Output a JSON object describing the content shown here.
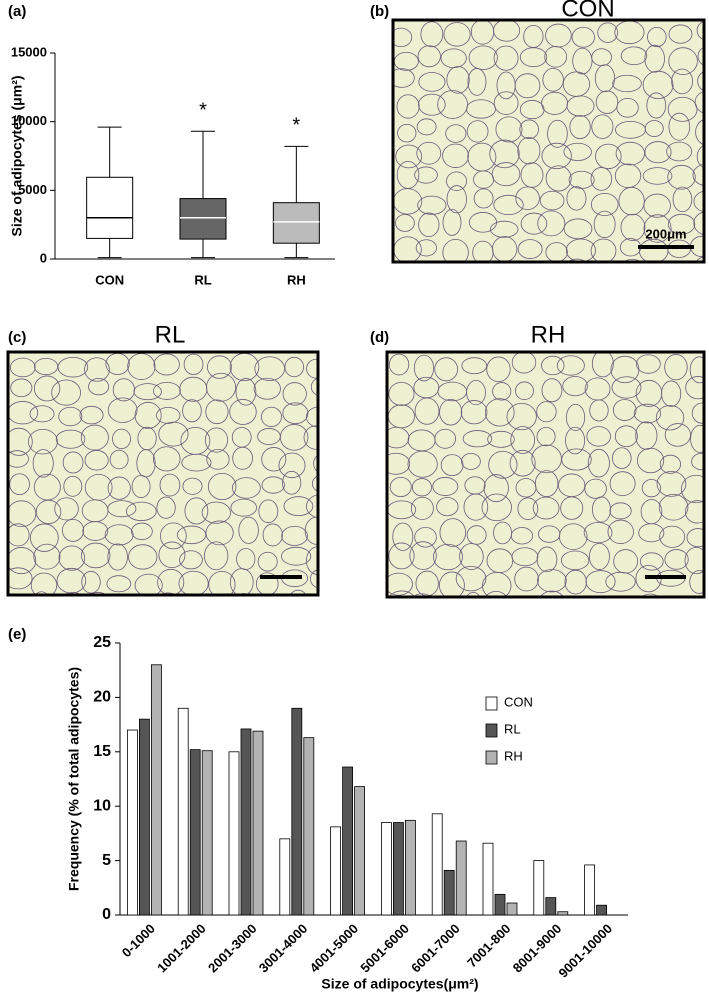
{
  "chart_data": [
    {
      "type": "box",
      "panel_label": "(a)",
      "ylabel": "Size of adipocytes (μm²)",
      "ylim": [
        0,
        15000
      ],
      "yticks": [
        0,
        5000,
        10000,
        15000
      ],
      "boxes": [
        {
          "name": "CON",
          "color": "#ffffff",
          "min": 100,
          "q1": 1500,
          "median": 3000,
          "q3": 5950,
          "max": 9600
        },
        {
          "name": "RL",
          "color": "#666666",
          "min": 100,
          "q1": 1450,
          "median": 3000,
          "q3": 4400,
          "max": 9300,
          "annotation": "*"
        },
        {
          "name": "RH",
          "color": "#bbbbbb",
          "min": 100,
          "q1": 1150,
          "median": 2700,
          "q3": 4100,
          "max": 8200,
          "annotation": "*"
        }
      ]
    },
    {
      "type": "bar",
      "panel_label": "(e)",
      "xlabel": "Size of adipocytes(μm²)",
      "ylabel": "Frequency (% of total adipocytes)",
      "categories": [
        "0-1000",
        "1001-2000",
        "2001-3000",
        "3001-4000",
        "4001-5000",
        "5001-6000",
        "6001-7000",
        "7001-800",
        "8001-9000",
        "9001-10000"
      ],
      "ylim": [
        0,
        25
      ],
      "yticks": [
        0,
        5,
        10,
        15,
        20,
        25
      ],
      "legend": "right",
      "series": [
        {
          "name": "CON",
          "color": "#ffffff",
          "values": [
            17,
            19,
            15,
            7,
            8.1,
            8.5,
            9.3,
            6.6,
            5,
            4.6
          ]
        },
        {
          "name": "RL",
          "color": "#555555",
          "values": [
            18,
            15.2,
            17.1,
            19,
            13.6,
            8.5,
            4.1,
            1.9,
            1.6,
            0.9
          ]
        },
        {
          "name": "RH",
          "color": "#b3b3b3",
          "values": [
            23,
            15.1,
            16.9,
            16.3,
            11.8,
            8.7,
            6.8,
            1.1,
            0.3,
            0
          ]
        }
      ]
    }
  ],
  "images": [
    {
      "panel_label": "(b)",
      "title": "CON",
      "scale_bar": "200μm"
    },
    {
      "panel_label": "(c)",
      "title": "RL"
    },
    {
      "panel_label": "(d)",
      "title": "RH"
    }
  ]
}
